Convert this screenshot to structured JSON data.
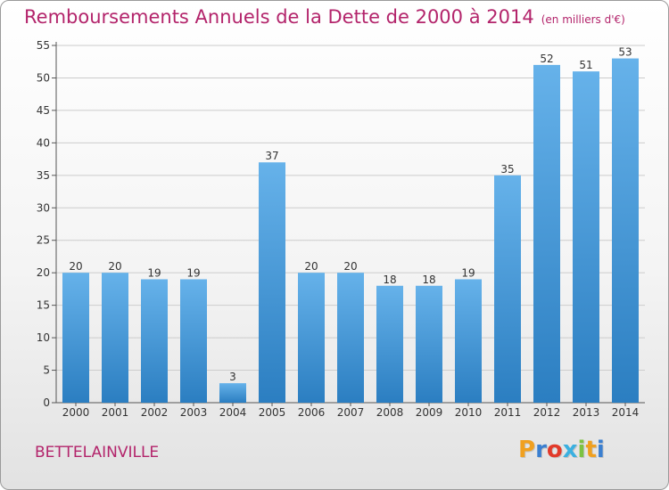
{
  "header": {
    "title": "Remboursements Annuels de la Dette de 2000 à 2014",
    "unit": "(en milliers d'€)"
  },
  "footer": {
    "place": "BETTELAINVILLE",
    "logo_letters": [
      "P",
      "r",
      "o",
      "x",
      "i",
      "t",
      "i"
    ],
    "logo_colors": [
      "#f0a020",
      "#3b7fd0",
      "#e23a2a",
      "#3bb0e0",
      "#7cc242",
      "#f0a020",
      "#3b7fd0"
    ]
  },
  "colors": {
    "bar_light": "#66b2ea",
    "bar_dark": "#2b7ec1",
    "title": "#b3246b",
    "grid": "#cccccc"
  },
  "chart_data": {
    "type": "bar",
    "title": "Remboursements Annuels de la Dette de 2000 à 2014",
    "categories": [
      "2000",
      "2001",
      "2002",
      "2003",
      "2004",
      "2005",
      "2006",
      "2007",
      "2008",
      "2009",
      "2010",
      "2011",
      "2012",
      "2013",
      "2014"
    ],
    "values": [
      20,
      20,
      19,
      19,
      3,
      37,
      20,
      20,
      18,
      18,
      19,
      35,
      52,
      51,
      53
    ],
    "ylim": [
      0,
      55
    ],
    "yticks": [
      0,
      5,
      10,
      15,
      20,
      25,
      30,
      35,
      40,
      45,
      50,
      55
    ],
    "grid": true
  }
}
